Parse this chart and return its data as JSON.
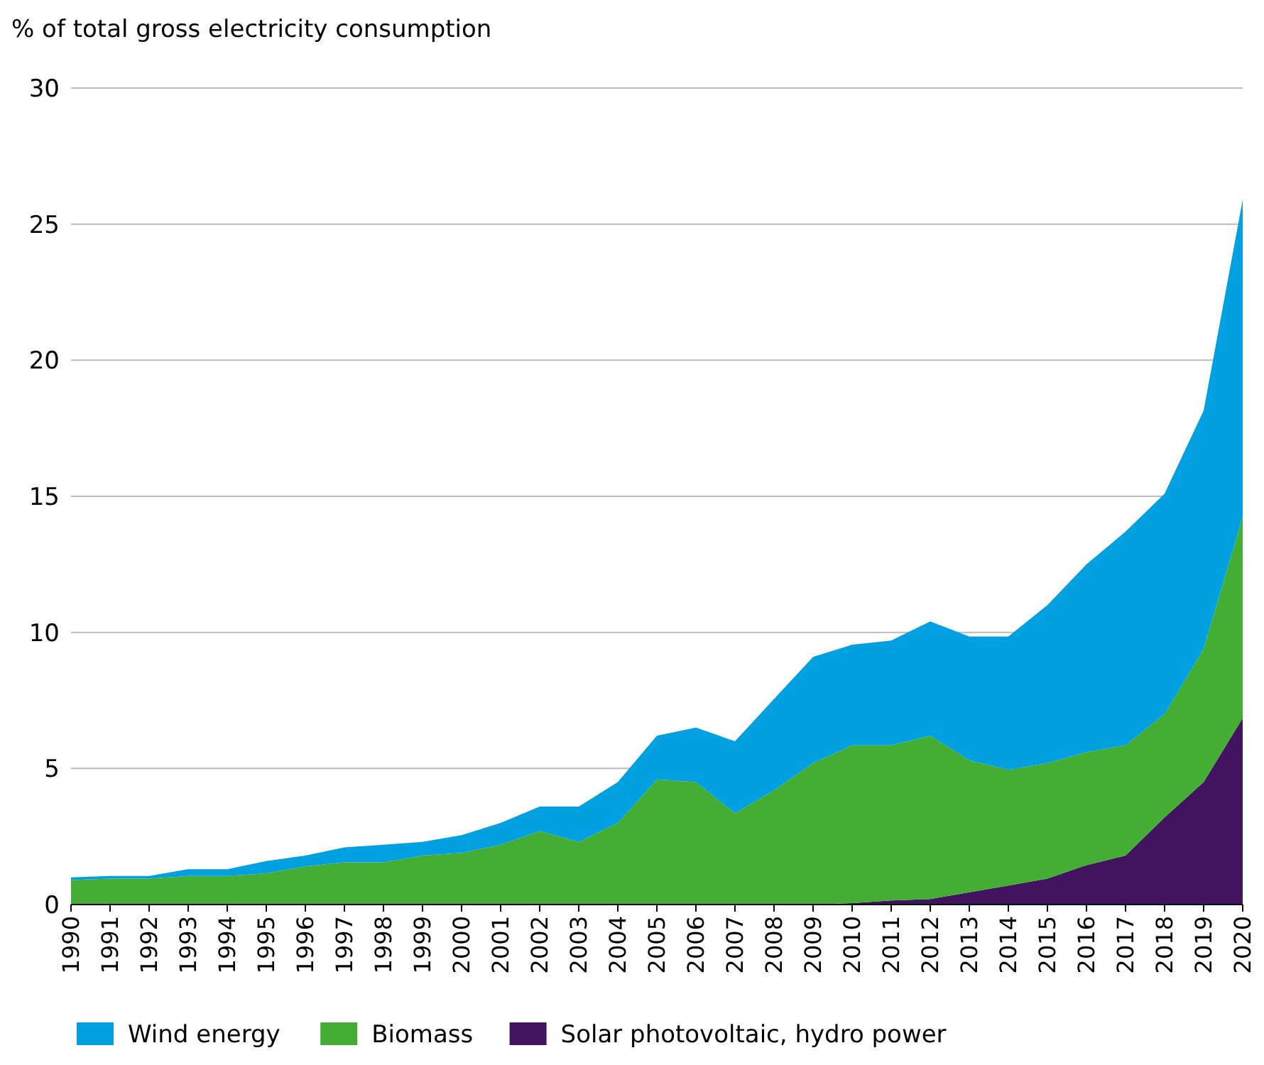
{
  "chart_data": {
    "type": "area",
    "stacked": true,
    "ylabel": "% of total gross electricity consumption",
    "categories": [
      "1990",
      "1991",
      "1992",
      "1993",
      "1994",
      "1995",
      "1996",
      "1997",
      "1998",
      "1999",
      "2000",
      "2001",
      "2002",
      "2003",
      "2004",
      "2005",
      "2006",
      "2007",
      "2008",
      "2009",
      "2010",
      "2011",
      "2012",
      "2013",
      "2014",
      "2015",
      "2016",
      "2017",
      "2018",
      "2019",
      "2020"
    ],
    "series": [
      {
        "name": "Solar photovoltaic, hydro power",
        "color": "#42145f",
        "values": [
          0,
          0,
          0,
          0,
          0,
          0,
          0,
          0,
          0,
          0,
          0,
          0,
          0,
          0,
          0,
          0,
          0,
          0,
          0,
          0,
          0.05,
          0.15,
          0.2,
          0.45,
          0.7,
          0.95,
          1.45,
          1.8,
          3.2,
          4.5,
          6.85
        ]
      },
      {
        "name": "Biomass",
        "color": "#44ad34",
        "values": [
          0.9,
          0.95,
          0.95,
          1.05,
          1.05,
          1.15,
          1.4,
          1.55,
          1.55,
          1.8,
          1.9,
          2.2,
          2.7,
          2.3,
          3.0,
          4.6,
          4.5,
          3.35,
          4.2,
          5.2,
          5.8,
          5.7,
          6.0,
          4.85,
          4.25,
          4.25,
          4.15,
          4.05,
          3.8,
          4.9,
          7.4
        ]
      },
      {
        "name": "Wind energy",
        "color": "#00a0e1",
        "values": [
          0.1,
          0.1,
          0.1,
          0.25,
          0.25,
          0.45,
          0.4,
          0.55,
          0.65,
          0.5,
          0.65,
          0.8,
          0.9,
          1.3,
          1.5,
          1.6,
          2.0,
          2.65,
          3.35,
          3.9,
          3.7,
          3.85,
          4.2,
          4.55,
          4.9,
          5.8,
          6.9,
          7.85,
          8.1,
          8.75,
          11.65
        ]
      }
    ],
    "ylim": [
      0,
      30
    ],
    "yticks": [
      0,
      5,
      10,
      15,
      20,
      25,
      30
    ],
    "grid": "y",
    "legend": "bottom"
  }
}
